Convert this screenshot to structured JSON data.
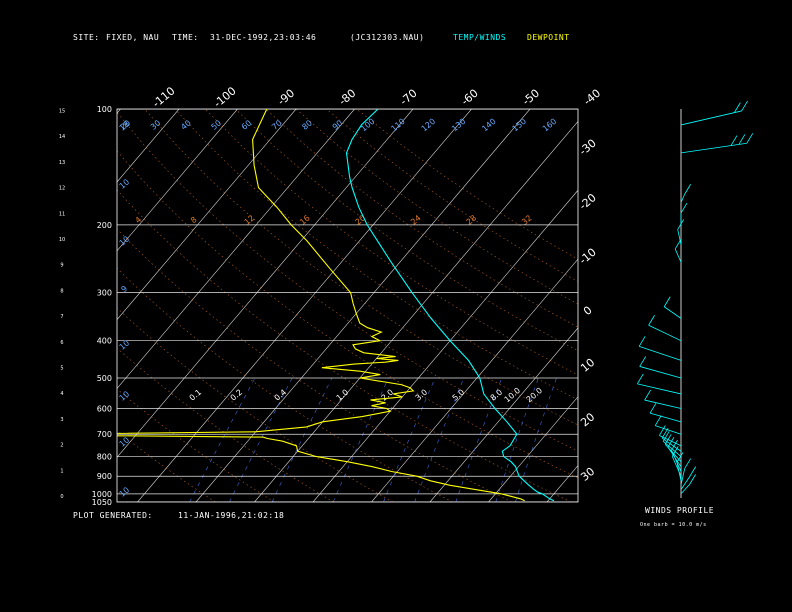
{
  "header": {
    "site_label": "SITE:",
    "site_value": "FIXED, NAU",
    "time_label": "TIME:",
    "time_value": "31-DEC-1992,23:03:46",
    "file_name": "(JC312303.NAU)",
    "temp_legend": "TEMP/WINDS",
    "dew_legend": "DEWPOINT"
  },
  "footer": {
    "generated_label": "PLOT GENERATED:",
    "generated_value": "11-JAN-1996,21:02:18",
    "winds_title": "WINDS PROFILE",
    "barb_note": "One barb = 10.0 m/s"
  },
  "colors": {
    "temperature": "#00ffff",
    "dewpoint": "#ffff00",
    "isotherm": "#ffffff",
    "isobar": "#ffffff",
    "dry_adiabat": "#e07a2a",
    "moist_adiabat": "#ff9a5a",
    "mixing_ratio": "#4a78ff"
  },
  "chart_data": {
    "type": "line",
    "diagram": "skew-T log-p",
    "pressure_axis": {
      "ticks": [
        100,
        200,
        300,
        400,
        500,
        600,
        700,
        800,
        900,
        1000,
        1050
      ],
      "ylim": [
        1050,
        100
      ],
      "scale": "log"
    },
    "height_axis_km": [
      "0",
      "1",
      "2",
      "3",
      "4",
      "5",
      "6",
      "7",
      "8",
      "9",
      "10",
      "11",
      "12",
      "13",
      "14",
      "15"
    ],
    "top_temp_labels": [
      "-110",
      "-100",
      "-90",
      "-80",
      "-70",
      "-60",
      "-50",
      "-40"
    ],
    "right_temp_labels": [
      "-30",
      "-20",
      "-10",
      "0",
      "10",
      "20",
      "30"
    ],
    "dry_adiabat_labels": [
      "4",
      "8",
      "12",
      "16",
      "20",
      "24",
      "28",
      "32"
    ],
    "mixing_labels_top": [
      "20",
      "30",
      "40",
      "50",
      "60",
      "70",
      "80",
      "90",
      "100",
      "110",
      "120",
      "130",
      "140",
      "150",
      "160"
    ],
    "mixing_labels_mid": [
      "0.1",
      "0.2",
      "0.4",
      "1.0",
      "2.0",
      "3.0",
      "5.0",
      "8.0",
      "10.0",
      "20.0"
    ],
    "left_small_labels": [
      "18",
      "10",
      "10",
      "9",
      "10",
      "10",
      "10",
      "10"
    ],
    "grid": true,
    "series": [
      {
        "name": "TEMP/WINDS",
        "points": [
          [
            1042,
            21
          ],
          [
            1030,
            20
          ],
          [
            1015,
            19
          ],
          [
            1000,
            18
          ],
          [
            990,
            17
          ],
          [
            975,
            16
          ],
          [
            950,
            14.5
          ],
          [
            925,
            13
          ],
          [
            900,
            11.5
          ],
          [
            875,
            10.5
          ],
          [
            850,
            9.5
          ],
          [
            825,
            8
          ],
          [
            800,
            6
          ],
          [
            775,
            5
          ],
          [
            750,
            5.5
          ],
          [
            700,
            5
          ],
          [
            650,
            1.5
          ],
          [
            600,
            -2.5
          ],
          [
            550,
            -6.5
          ],
          [
            500,
            -9.5
          ],
          [
            450,
            -14
          ],
          [
            400,
            -20
          ],
          [
            350,
            -26.5
          ],
          [
            300,
            -33.5
          ],
          [
            250,
            -41.5
          ],
          [
            200,
            -51
          ],
          [
            180,
            -55
          ],
          [
            160,
            -59
          ],
          [
            150,
            -61
          ],
          [
            130,
            -65
          ],
          [
            120,
            -66
          ],
          [
            110,
            -66.5
          ],
          [
            100,
            -66
          ]
        ]
      },
      {
        "name": "DEWPOINT",
        "points": [
          [
            1042,
            16
          ],
          [
            1030,
            15
          ],
          [
            1015,
            13
          ],
          [
            1000,
            11
          ],
          [
            975,
            6
          ],
          [
            950,
            1
          ],
          [
            925,
            -3
          ],
          [
            900,
            -6
          ],
          [
            875,
            -11
          ],
          [
            850,
            -15
          ],
          [
            825,
            -20
          ],
          [
            800,
            -26
          ],
          [
            775,
            -30
          ],
          [
            750,
            -31
          ],
          [
            730,
            -34
          ],
          [
            718,
            -37
          ],
          [
            712,
            -38
          ],
          [
            705,
            -70
          ],
          [
            698,
            -70
          ],
          [
            690,
            -40
          ],
          [
            670,
            -32
          ],
          [
            650,
            -30
          ],
          [
            630,
            -24
          ],
          [
            610,
            -20
          ],
          [
            600,
            -21
          ],
          [
            590,
            -24
          ],
          [
            580,
            -22
          ],
          [
            570,
            -25
          ],
          [
            560,
            -20
          ],
          [
            550,
            -22
          ],
          [
            540,
            -19
          ],
          [
            530,
            -20
          ],
          [
            520,
            -22
          ],
          [
            510,
            -26
          ],
          [
            500,
            -30
          ],
          [
            490,
            -27
          ],
          [
            480,
            -31
          ],
          [
            470,
            -38
          ],
          [
            460,
            -33
          ],
          [
            455,
            -28
          ],
          [
            450,
            -26
          ],
          [
            445,
            -30
          ],
          [
            440,
            -27
          ],
          [
            430,
            -33
          ],
          [
            420,
            -35
          ],
          [
            410,
            -36
          ],
          [
            400,
            -32
          ],
          [
            390,
            -34
          ],
          [
            380,
            -33
          ],
          [
            370,
            -36
          ],
          [
            360,
            -38
          ],
          [
            340,
            -40
          ],
          [
            320,
            -42
          ],
          [
            300,
            -44
          ],
          [
            260,
            -51
          ],
          [
            220,
            -59
          ],
          [
            200,
            -64
          ],
          [
            180,
            -69
          ],
          [
            160,
            -75
          ],
          [
            140,
            -79
          ],
          [
            120,
            -83
          ],
          [
            100,
            -85
          ]
        ]
      }
    ],
    "wind_profile": [
      {
        "p": 1000,
        "dir_deg": 200,
        "speed_ms": 6
      },
      {
        "p": 975,
        "dir_deg": 195,
        "speed_ms": 8
      },
      {
        "p": 950,
        "dir_deg": 185,
        "speed_ms": 10
      },
      {
        "p": 925,
        "dir_deg": 175,
        "speed_ms": 11
      },
      {
        "p": 900,
        "dir_deg": 170,
        "speed_ms": 12
      },
      {
        "p": 875,
        "dir_deg": 170,
        "speed_ms": 13
      },
      {
        "p": 850,
        "dir_deg": 165,
        "speed_ms": 12
      },
      {
        "p": 825,
        "dir_deg": 160,
        "speed_ms": 11
      },
      {
        "p": 800,
        "dir_deg": 155,
        "speed_ms": 10
      },
      {
        "p": 775,
        "dir_deg": 150,
        "speed_ms": 9
      },
      {
        "p": 750,
        "dir_deg": 140,
        "speed_ms": 8
      },
      {
        "p": 700,
        "dir_deg": 130,
        "speed_ms": 8
      },
      {
        "p": 650,
        "dir_deg": 125,
        "speed_ms": 9
      },
      {
        "p": 600,
        "dir_deg": 120,
        "speed_ms": 10
      },
      {
        "p": 550,
        "dir_deg": 120,
        "speed_ms": 12
      },
      {
        "p": 500,
        "dir_deg": 125,
        "speed_ms": 12
      },
      {
        "p": 450,
        "dir_deg": 130,
        "speed_ms": 13
      },
      {
        "p": 400,
        "dir_deg": 140,
        "speed_ms": 12
      },
      {
        "p": 350,
        "dir_deg": 150,
        "speed_ms": 8
      },
      {
        "p": 250,
        "dir_deg": 170,
        "speed_ms": 8
      },
      {
        "p": 225,
        "dir_deg": 175,
        "speed_ms": 9
      },
      {
        "p": 200,
        "dir_deg": 180,
        "speed_ms": 7
      },
      {
        "p": 175,
        "dir_deg": 190,
        "speed_ms": 5
      },
      {
        "p": 130,
        "dir_deg": 250,
        "speed_ms": 25
      },
      {
        "p": 110,
        "dir_deg": 240,
        "speed_ms": 18
      }
    ]
  }
}
